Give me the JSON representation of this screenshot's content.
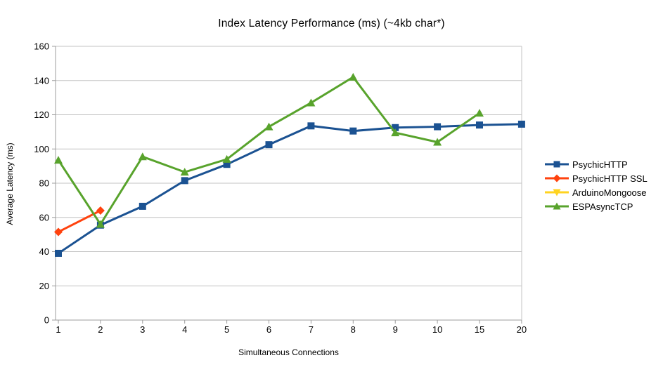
{
  "chart_data": {
    "type": "line",
    "title": "Index Latency Performance (ms) (~4kb char*)",
    "xlabel": "Simultaneous Connections",
    "ylabel": "Average Latency (ms)",
    "categories": [
      1,
      2,
      3,
      4,
      5,
      6,
      7,
      8,
      9,
      10,
      15,
      20
    ],
    "ylim": [
      0,
      160
    ],
    "ytick_step": 20,
    "grid": "horizontal",
    "legend_position": "right",
    "series": [
      {
        "name": "PsychicHTTP",
        "color": "#1B5292",
        "marker": "square",
        "values": [
          39,
          55.5,
          66.5,
          81.5,
          91,
          102.5,
          113.5,
          110.5,
          112.5,
          113,
          114,
          114.5
        ]
      },
      {
        "name": "PsychicHTTP SSL",
        "color": "#FF420E",
        "marker": "diamond",
        "values": [
          51.5,
          64,
          null,
          null,
          null,
          null,
          null,
          null,
          null,
          null,
          null,
          null
        ]
      },
      {
        "name": "ArduinoMongoose",
        "color": "#FFD320",
        "marker": "triangle-down",
        "values": [
          null,
          null,
          null,
          null,
          null,
          null,
          null,
          null,
          null,
          null,
          null,
          null
        ]
      },
      {
        "name": "ESPAsyncTCP",
        "color": "#58A32C",
        "marker": "triangle-up",
        "values": [
          93.5,
          56,
          95.5,
          86.5,
          94,
          113,
          127,
          142,
          109.5,
          104,
          121,
          null
        ]
      }
    ],
    "line_color_grid": "#c3c3c3",
    "line_color_axis": "#9c9c9c",
    "text_color": "#000000"
  }
}
